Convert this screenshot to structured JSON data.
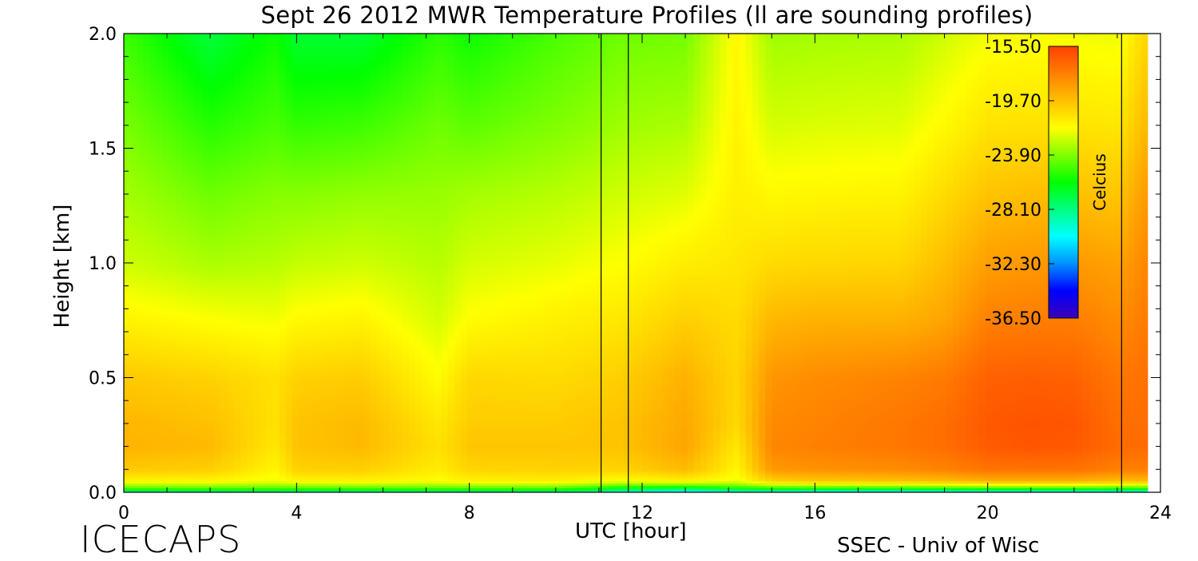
{
  "chart_data": {
    "type": "heatmap",
    "title": "Sept 26 2012 MWR Temperature Profiles (ll are sounding profiles)",
    "xlabel": "UTC [hour]",
    "ylabel": "Height [km]",
    "xlim": [
      0,
      24
    ],
    "ylim": [
      0.0,
      2.0
    ],
    "x_ticks": [
      "0",
      "4",
      "8",
      "12",
      "16",
      "20",
      "24"
    ],
    "y_ticks": [
      "0.0",
      "0.5",
      "1.0",
      "1.5",
      "2.0"
    ],
    "colorbar": {
      "label": "Celcius",
      "ticks": [
        "-15.50",
        "-19.70",
        "-23.90",
        "-28.10",
        "-32.30",
        "-36.50"
      ],
      "range": [
        -36.5,
        -15.5
      ],
      "colormap": [
        "#3b00b8",
        "#0000ff",
        "#0090ff",
        "#00ffff",
        "#00ff80",
        "#00ff00",
        "#80ff00",
        "#ffff00",
        "#ffc000",
        "#ff8000",
        "#ff4000"
      ]
    },
    "data_extent_hours": [
      0,
      23.7
    ],
    "sounding_profile_times_hours": [
      11.05,
      11.68,
      23.1
    ],
    "approx_temperature_celsius": {
      "height_km": [
        0.0,
        0.02,
        0.05,
        0.1,
        0.2,
        0.3,
        0.5,
        0.75,
        1.0,
        1.3,
        1.6,
        2.0
      ],
      "hour": [
        0,
        2,
        3.5,
        4,
        5.5,
        7.3,
        8,
        10,
        11.5,
        13,
        14.2,
        15,
        16,
        18,
        19,
        20,
        21,
        22,
        23,
        23.7
      ],
      "note_free": true,
      "profiles": [
        [
          -28.5,
          -24.5,
          -21.5,
          -20.0,
          -19.3,
          -19.4,
          -20.0,
          -21.4,
          -22.6,
          -23.3,
          -24.0,
          -25.0
        ],
        [
          -28.5,
          -24.5,
          -21.5,
          -20.2,
          -19.5,
          -19.7,
          -20.3,
          -21.8,
          -23.2,
          -24.2,
          -25.4,
          -27.0
        ],
        [
          -28.5,
          -24.5,
          -22.0,
          -21.5,
          -21.0,
          -20.8,
          -20.8,
          -22.0,
          -23.0,
          -23.8,
          -24.8,
          -25.8
        ],
        [
          -28.6,
          -24.6,
          -21.5,
          -20.3,
          -19.8,
          -19.8,
          -20.3,
          -21.6,
          -22.8,
          -23.8,
          -25.2,
          -26.8
        ],
        [
          -28.6,
          -24.6,
          -21.4,
          -20.2,
          -19.5,
          -19.5,
          -20.1,
          -21.4,
          -22.6,
          -23.6,
          -25.0,
          -26.8
        ],
        [
          -28.5,
          -24.5,
          -21.8,
          -21.2,
          -20.8,
          -21.0,
          -21.7,
          -22.5,
          -23.0,
          -23.5,
          -24.2,
          -25.3
        ],
        [
          -28.5,
          -24.5,
          -21.4,
          -20.4,
          -19.9,
          -20.1,
          -20.5,
          -21.7,
          -22.5,
          -23.3,
          -24.5,
          -25.8
        ],
        [
          -28.5,
          -24.5,
          -21.3,
          -20.3,
          -19.9,
          -20.1,
          -20.6,
          -21.3,
          -22.2,
          -23.0,
          -23.9,
          -24.8
        ],
        [
          -30.0,
          -26.0,
          -21.8,
          -20.4,
          -19.8,
          -19.8,
          -20.2,
          -21.0,
          -21.8,
          -22.6,
          -23.4,
          -24.2
        ],
        [
          -31.5,
          -26.5,
          -21.4,
          -19.5,
          -18.8,
          -18.9,
          -19.2,
          -20.2,
          -21.2,
          -22.3,
          -23.2,
          -24.1
        ],
        [
          -30.5,
          -25.5,
          -22.0,
          -21.5,
          -21.0,
          -20.5,
          -20.4,
          -20.6,
          -21.0,
          -21.3,
          -21.4,
          -21.6
        ],
        [
          -30.5,
          -25.0,
          -20.3,
          -18.4,
          -17.8,
          -17.9,
          -18.3,
          -19.4,
          -20.6,
          -21.6,
          -22.5,
          -23.4
        ],
        [
          -31.0,
          -25.0,
          -20.0,
          -18.2,
          -17.6,
          -17.7,
          -18.0,
          -19.2,
          -20.5,
          -21.5,
          -22.4,
          -23.3
        ],
        [
          -31.0,
          -25.0,
          -19.8,
          -18.0,
          -17.3,
          -17.3,
          -17.7,
          -19.2,
          -20.4,
          -21.4,
          -22.3,
          -23.2
        ],
        [
          -31.0,
          -24.8,
          -19.6,
          -17.7,
          -17.0,
          -17.0,
          -17.4,
          -18.8,
          -19.6,
          -20.6,
          -21.6,
          -22.6
        ],
        [
          -31.0,
          -24.6,
          -19.2,
          -17.2,
          -16.4,
          -16.3,
          -16.6,
          -17.6,
          -18.6,
          -19.8,
          -20.9,
          -22.0
        ],
        [
          -31.0,
          -24.6,
          -19.2,
          -17.2,
          -16.2,
          -16.1,
          -16.5,
          -17.5,
          -18.4,
          -19.6,
          -20.8,
          -21.9
        ],
        [
          -31.0,
          -24.6,
          -19.2,
          -17.2,
          -16.3,
          -16.2,
          -16.6,
          -17.5,
          -18.4,
          -19.7,
          -20.9,
          -22.0
        ],
        [
          -31.0,
          -24.8,
          -19.6,
          -17.6,
          -16.9,
          -17.0,
          -17.3,
          -18.0,
          -18.7,
          -19.9,
          -21.0,
          -22.1
        ],
        [
          -31.0,
          -24.8,
          -19.6,
          -17.6,
          -16.9,
          -17.0,
          -17.1,
          -17.4,
          -17.8,
          -18.4,
          -19.4,
          -20.4
        ]
      ]
    }
  },
  "branding": {
    "left": "ICECAPS",
    "right": "SSEC - Univ of Wisc"
  }
}
